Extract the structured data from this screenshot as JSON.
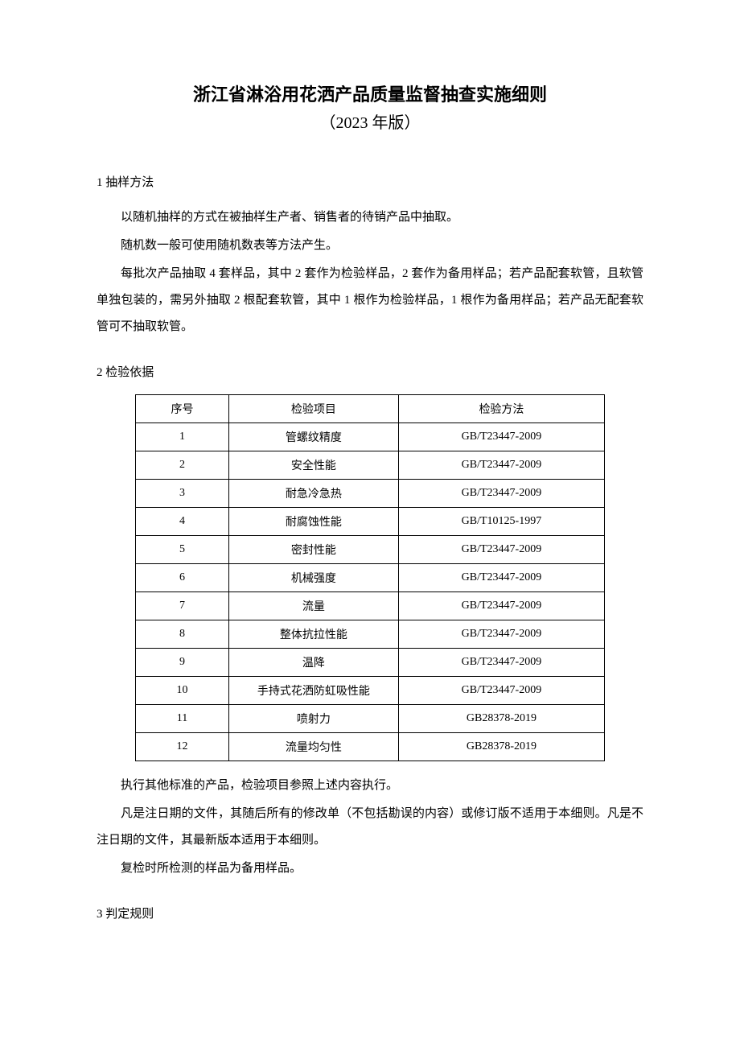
{
  "title": {
    "main": "浙江省淋浴用花洒产品质量监督抽查实施细则",
    "sub": "（2023 年版）"
  },
  "section1": {
    "heading": "1 抽样方法",
    "p1": "以随机抽样的方式在被抽样生产者、销售者的待销产品中抽取。",
    "p2": "随机数一般可使用随机数表等方法产生。",
    "p3": "每批次产品抽取 4 套样品，其中 2 套作为检验样品，2 套作为备用样品；若产品配套软管，且软管单独包装的，需另外抽取 2 根配套软管，其中 1 根作为检验样品，1 根作为备用样品；若产品无配套软管可不抽取软管。"
  },
  "section2": {
    "heading": "2 检验依据",
    "table": {
      "headers": {
        "c1": "序号",
        "c2": "检验项目",
        "c3": "检验方法"
      },
      "rows": [
        {
          "c1": "1",
          "c2": "管螺纹精度",
          "c3": "GB/T23447-2009"
        },
        {
          "c1": "2",
          "c2": "安全性能",
          "c3": "GB/T23447-2009"
        },
        {
          "c1": "3",
          "c2": "耐急冷急热",
          "c3": "GB/T23447-2009"
        },
        {
          "c1": "4",
          "c2": "耐腐蚀性能",
          "c3": "GB/T10125-1997"
        },
        {
          "c1": "5",
          "c2": "密封性能",
          "c3": "GB/T23447-2009"
        },
        {
          "c1": "6",
          "c2": "机械强度",
          "c3": "GB/T23447-2009"
        },
        {
          "c1": "7",
          "c2": "流量",
          "c3": "GB/T23447-2009"
        },
        {
          "c1": "8",
          "c2": "整体抗拉性能",
          "c3": "GB/T23447-2009"
        },
        {
          "c1": "9",
          "c2": "温降",
          "c3": "GB/T23447-2009"
        },
        {
          "c1": "10",
          "c2": "手持式花洒防虹吸性能",
          "c3": "GB/T23447-2009"
        },
        {
          "c1": "11",
          "c2": "喷射力",
          "c3": "GB28378-2019"
        },
        {
          "c1": "12",
          "c2": "流量均匀性",
          "c3": "GB28378-2019"
        }
      ]
    },
    "p1": "执行其他标准的产品，检验项目参照上述内容执行。",
    "p2": "凡是注日期的文件，其随后所有的修改单（不包括勘误的内容）或修订版不适用于本细则。凡是不注日期的文件，其最新版本适用于本细则。",
    "p3": "复检时所检测的样品为备用样品。"
  },
  "section3": {
    "heading": "3 判定规则"
  }
}
